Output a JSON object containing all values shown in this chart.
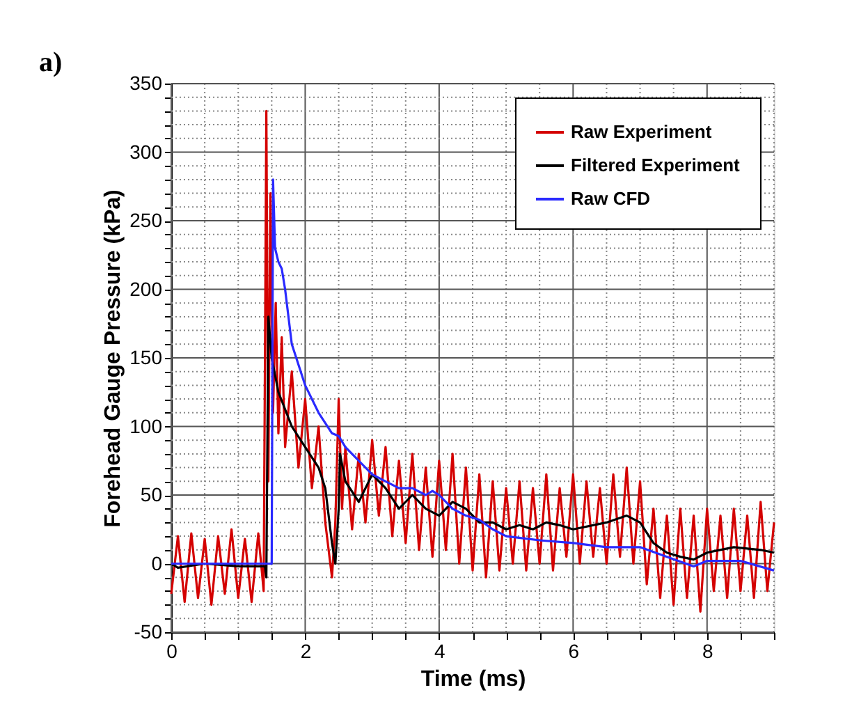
{
  "chart_data": {
    "type": "line",
    "xlabel": "Time (ms)",
    "ylabel": "Forehead Gauge Pressure (kPa)",
    "annotations": [
      "a)"
    ],
    "xlim": [
      0,
      9
    ],
    "ylim": [
      -50,
      350
    ],
    "xticks": [
      0,
      {
        "value": 0.5,
        "label": null
      },
      {
        "value": 1,
        "label": null
      },
      {
        "value": 1.5,
        "label": null
      },
      2,
      {
        "value": 2.5,
        "label": null
      },
      {
        "value": 3,
        "label": null
      },
      {
        "value": 3.5,
        "label": null
      },
      4,
      {
        "value": 4.5,
        "label": null
      },
      {
        "value": 5,
        "label": null
      },
      {
        "value": 5.5,
        "label": null
      },
      6,
      {
        "value": 6.5,
        "label": null
      },
      {
        "value": 7,
        "label": null
      },
      {
        "value": 7.5,
        "label": null
      },
      8,
      {
        "value": 8.5,
        "label": null
      },
      {
        "value": 9,
        "label": null
      }
    ],
    "yticks": [
      -50,
      {
        "value": -40,
        "label": null
      },
      {
        "value": -30,
        "label": null
      },
      {
        "value": -20,
        "label": null
      },
      {
        "value": -10,
        "label": null
      },
      0,
      {
        "value": 10,
        "label": null
      },
      {
        "value": 20,
        "label": null
      },
      {
        "value": 30,
        "label": null
      },
      {
        "value": 40,
        "label": null
      },
      50,
      {
        "value": 60,
        "label": null
      },
      {
        "value": 70,
        "label": null
      },
      {
        "value": 80,
        "label": null
      },
      {
        "value": 90,
        "label": null
      },
      100,
      {
        "value": 110,
        "label": null
      },
      {
        "value": 120,
        "label": null
      },
      {
        "value": 130,
        "label": null
      },
      {
        "value": 140,
        "label": null
      },
      150,
      {
        "value": 160,
        "label": null
      },
      {
        "value": 170,
        "label": null
      },
      {
        "value": 180,
        "label": null
      },
      {
        "value": 190,
        "label": null
      },
      200,
      {
        "value": 210,
        "label": null
      },
      {
        "value": 220,
        "label": null
      },
      {
        "value": 230,
        "label": null
      },
      {
        "value": 240,
        "label": null
      },
      250,
      {
        "value": 260,
        "label": null
      },
      {
        "value": 270,
        "label": null
      },
      {
        "value": 280,
        "label": null
      },
      {
        "value": 290,
        "label": null
      },
      300,
      {
        "value": 310,
        "label": null
      },
      {
        "value": 320,
        "label": null
      },
      {
        "value": 330,
        "label": null
      },
      {
        "value": 340,
        "label": null
      },
      350
    ],
    "grid": true,
    "legend": "top right",
    "marker": "none",
    "line_style": "solid",
    "series": [
      {
        "name": "Raw Experiment",
        "color": "#d40000",
        "x": [
          0,
          0.1,
          0.2,
          0.3,
          0.4,
          0.5,
          0.6,
          0.7,
          0.8,
          0.9,
          1.0,
          1.1,
          1.2,
          1.3,
          1.38,
          1.42,
          1.45,
          1.48,
          1.52,
          1.56,
          1.6,
          1.65,
          1.7,
          1.8,
          1.9,
          2.0,
          2.1,
          2.2,
          2.3,
          2.4,
          2.45,
          2.5,
          2.55,
          2.6,
          2.7,
          2.8,
          2.9,
          3.0,
          3.1,
          3.2,
          3.3,
          3.4,
          3.5,
          3.6,
          3.7,
          3.8,
          3.9,
          4.0,
          4.1,
          4.2,
          4.3,
          4.4,
          4.5,
          4.6,
          4.7,
          4.8,
          4.9,
          5.0,
          5.1,
          5.2,
          5.3,
          5.4,
          5.5,
          5.6,
          5.7,
          5.8,
          5.9,
          6.0,
          6.1,
          6.2,
          6.3,
          6.4,
          6.5,
          6.6,
          6.7,
          6.8,
          6.9,
          7.0,
          7.1,
          7.2,
          7.3,
          7.4,
          7.5,
          7.6,
          7.7,
          7.8,
          7.9,
          8.0,
          8.1,
          8.2,
          8.3,
          8.4,
          8.5,
          8.6,
          8.7,
          8.8,
          8.9,
          9.0
        ],
        "values": [
          -22,
          20,
          -28,
          22,
          -25,
          18,
          -30,
          20,
          -22,
          25,
          -25,
          18,
          -28,
          22,
          -20,
          330,
          60,
          270,
          110,
          190,
          95,
          165,
          85,
          140,
          70,
          120,
          55,
          100,
          30,
          -10,
          30,
          120,
          40,
          85,
          25,
          80,
          30,
          90,
          35,
          85,
          20,
          75,
          15,
          80,
          10,
          70,
          5,
          75,
          10,
          80,
          0,
          70,
          -5,
          65,
          -10,
          60,
          -5,
          55,
          0,
          60,
          -5,
          55,
          0,
          65,
          -5,
          55,
          5,
          65,
          0,
          60,
          5,
          55,
          0,
          65,
          5,
          70,
          0,
          60,
          -15,
          40,
          -25,
          35,
          -30,
          40,
          -25,
          35,
          -35,
          40,
          -20,
          35,
          -25,
          40,
          -20,
          35,
          -25,
          45,
          -20,
          30
        ]
      },
      {
        "name": "Filtered Experiment",
        "color": "#000000",
        "x": [
          0,
          0.1,
          0.5,
          1.0,
          1.4,
          1.42,
          1.45,
          1.5,
          1.6,
          1.8,
          2.0,
          2.2,
          2.3,
          2.4,
          2.45,
          2.5,
          2.52,
          2.6,
          2.8,
          3.0,
          3.2,
          3.4,
          3.6,
          3.8,
          4.0,
          4.2,
          4.4,
          4.6,
          4.8,
          5.0,
          5.2,
          5.4,
          5.6,
          5.8,
          6.0,
          6.5,
          6.8,
          7.0,
          7.2,
          7.4,
          7.6,
          7.8,
          8.0,
          8.4,
          8.8,
          9.0
        ],
        "values": [
          0,
          -3,
          0,
          -2,
          -2,
          -10,
          180,
          150,
          125,
          100,
          85,
          70,
          55,
          15,
          0,
          40,
          80,
          60,
          45,
          65,
          55,
          40,
          50,
          40,
          35,
          45,
          40,
          30,
          30,
          25,
          28,
          25,
          30,
          28,
          25,
          30,
          35,
          30,
          15,
          8,
          5,
          3,
          8,
          12,
          10,
          8
        ]
      },
      {
        "name": "Raw CFD",
        "color": "#2a2aff",
        "x": [
          0,
          1.5,
          1.52,
          1.55,
          1.6,
          1.65,
          1.7,
          1.8,
          2.0,
          2.2,
          2.4,
          2.5,
          2.6,
          2.8,
          3.0,
          3.2,
          3.4,
          3.6,
          3.8,
          3.9,
          4.0,
          4.2,
          4.4,
          4.6,
          4.8,
          5.0,
          5.5,
          6.0,
          6.5,
          7.0,
          7.4,
          7.8,
          8.0,
          8.5,
          9.0
        ],
        "values": [
          0,
          0,
          280,
          230,
          220,
          215,
          200,
          160,
          130,
          110,
          95,
          93,
          85,
          75,
          65,
          60,
          55,
          55,
          50,
          53,
          50,
          40,
          35,
          32,
          25,
          20,
          17,
          15,
          12,
          12,
          5,
          -2,
          2,
          2,
          -5
        ]
      }
    ]
  }
}
